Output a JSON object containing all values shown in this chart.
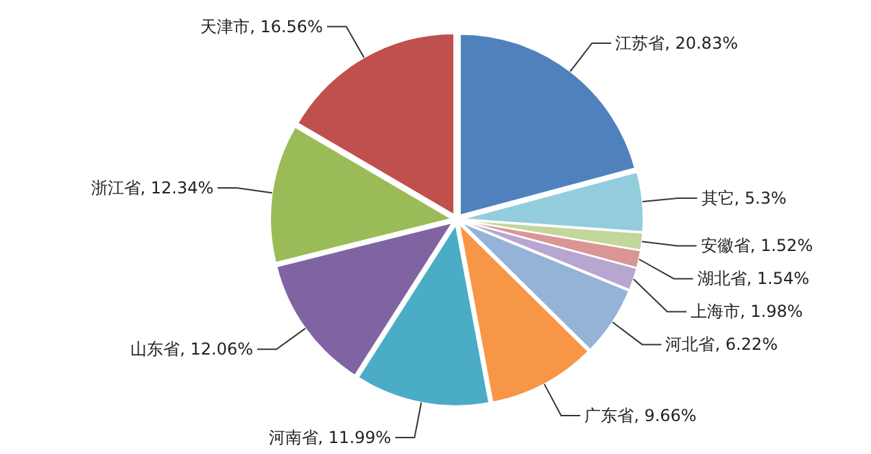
{
  "chart_data": {
    "type": "pie",
    "categories": [
      "江苏省",
      "其它",
      "安徽省",
      "湖北省",
      "上海市",
      "河北省",
      "广东省",
      "河南省",
      "山东省",
      "浙江省",
      "天津市"
    ],
    "values": [
      20.83,
      5.3,
      1.52,
      1.54,
      1.98,
      6.22,
      9.66,
      11.99,
      12.06,
      12.34,
      16.56
    ],
    "value_labels": [
      "20.83%",
      "5.3%",
      "1.52%",
      "1.54%",
      "1.98%",
      "6.22%",
      "9.66%",
      "11.99%",
      "12.06%",
      "12.34%",
      "16.56%"
    ],
    "colors": [
      "#4f81bd",
      "#93cddd",
      "#c3d69b",
      "#d99694",
      "#b7a6d0",
      "#95b3d7",
      "#f79646",
      "#4bacc6",
      "#8064a2",
      "#9bbb59",
      "#c0504d"
    ],
    "legend": false
  }
}
